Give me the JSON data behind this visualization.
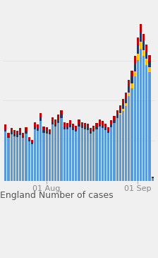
{
  "title": "England Number of cases",
  "background_color": "#f0f0f0",
  "chart_bg": "#f0f0f0",
  "xtick_labels": [
    "01 Aug",
    "01 Sep"
  ],
  "blue_values": [
    55,
    48,
    52,
    50,
    49,
    51,
    48,
    53,
    44,
    41,
    58,
    56,
    67,
    54,
    53,
    52,
    63,
    61,
    65,
    70,
    58,
    58,
    60,
    57,
    55,
    61,
    59,
    58,
    57,
    53,
    55,
    58,
    61,
    59,
    57,
    54,
    60,
    65,
    70,
    74,
    78,
    84,
    95,
    104,
    117,
    136,
    148,
    140,
    130,
    122,
    3
  ],
  "red_values": [
    5,
    4,
    4,
    4,
    4,
    5,
    4,
    4,
    3,
    3,
    5,
    4,
    5,
    4,
    4,
    4,
    5,
    5,
    5,
    5,
    5,
    4,
    5,
    4,
    4,
    5,
    4,
    4,
    4,
    4,
    4,
    4,
    5,
    5,
    4,
    4,
    5,
    5,
    5,
    5,
    6,
    6,
    7,
    7,
    8,
    8,
    9,
    8,
    8,
    7,
    0
  ],
  "navy_values": [
    3,
    2,
    3,
    3,
    3,
    3,
    2,
    3,
    2,
    2,
    3,
    3,
    4,
    3,
    3,
    2,
    3,
    3,
    4,
    4,
    3,
    3,
    3,
    3,
    3,
    3,
    3,
    3,
    3,
    2,
    3,
    3,
    3,
    3,
    3,
    2,
    3,
    3,
    4,
    4,
    5,
    6,
    7,
    8,
    9,
    10,
    11,
    10,
    8,
    6,
    1
  ],
  "yellow_values": [
    0,
    0,
    0,
    0,
    0,
    0,
    0,
    0,
    0,
    0,
    0,
    0,
    0,
    0,
    0,
    0,
    0,
    0,
    0,
    0,
    0,
    0,
    0,
    0,
    0,
    0,
    0,
    0,
    0,
    0,
    0,
    0,
    0,
    0,
    0,
    0,
    0,
    0,
    0,
    2,
    3,
    3,
    4,
    5,
    6,
    7,
    8,
    7,
    7,
    6,
    0
  ],
  "bar_color_blue": "#5b9bd5",
  "bar_color_red": "#c00000",
  "bar_color_navy": "#1f3864",
  "bar_color_yellow": "#ffc000",
  "aug_tick_idx": 14,
  "sep_tick_idx": 45,
  "ylim": [
    0,
    180
  ],
  "fig_width": 2.24,
  "fig_height": 3.65,
  "dpi": 100,
  "label_fontsize": 8,
  "title_fontsize": 9,
  "label_color": "#888888",
  "title_color": "#555555",
  "n_bars": 51,
  "bar_width": 0.75
}
